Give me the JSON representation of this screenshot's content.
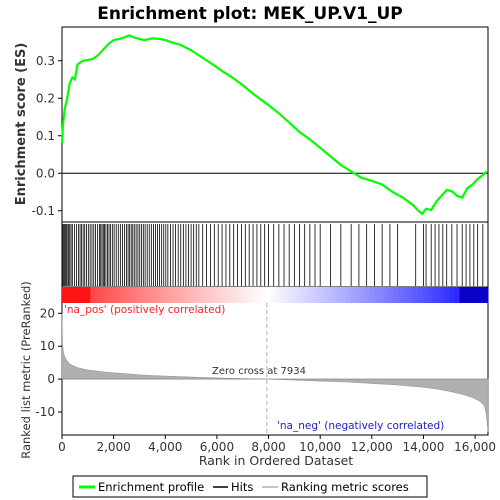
{
  "chart_data": [
    {
      "panel": "enrichment",
      "type": "line",
      "title": "Enrichment plot: MEK_UP.V1_UP",
      "ylabel": "Enrichment score (ES)",
      "xlim": [
        0,
        16500
      ],
      "ylim": [
        -0.13,
        0.39
      ],
      "yticks": [
        -0.1,
        0.0,
        0.1,
        0.2,
        0.3
      ],
      "ytick_labels": [
        "-0.1",
        "0.0",
        "0.1",
        "0.2",
        "0.3"
      ],
      "grid": false,
      "series": [
        {
          "name": "Enrichment profile",
          "color": "#00ff00",
          "x": [
            0,
            40,
            100,
            200,
            300,
            400,
            500,
            600,
            700,
            800,
            1000,
            1200,
            1400,
            1600,
            1800,
            2000,
            2200,
            2400,
            2600,
            2800,
            3000,
            3200,
            3500,
            3800,
            4000,
            4300,
            4600,
            5000,
            5400,
            5800,
            6200,
            6600,
            7000,
            7400,
            7934,
            8400,
            8800,
            9200,
            9600,
            10000,
            10400,
            10800,
            11200,
            11600,
            12000,
            12400,
            12800,
            13200,
            13600,
            13800,
            13950,
            14100,
            14300,
            14500,
            14700,
            14900,
            15100,
            15300,
            15500,
            15700,
            15900,
            16100,
            16300,
            16450
          ],
          "y": [
            0.08,
            0.13,
            0.17,
            0.2,
            0.24,
            0.255,
            0.25,
            0.29,
            0.295,
            0.3,
            0.302,
            0.305,
            0.315,
            0.33,
            0.345,
            0.355,
            0.358,
            0.362,
            0.368,
            0.362,
            0.358,
            0.355,
            0.36,
            0.358,
            0.355,
            0.348,
            0.342,
            0.328,
            0.31,
            0.292,
            0.273,
            0.255,
            0.235,
            0.212,
            0.185,
            0.16,
            0.135,
            0.11,
            0.09,
            0.068,
            0.045,
            0.022,
            0.005,
            -0.012,
            -0.02,
            -0.03,
            -0.05,
            -0.065,
            -0.085,
            -0.1,
            -0.108,
            -0.095,
            -0.098,
            -0.075,
            -0.06,
            -0.045,
            -0.048,
            -0.06,
            -0.065,
            -0.04,
            -0.03,
            -0.015,
            -0.005,
            0.005
          ]
        }
      ]
    },
    {
      "panel": "hits",
      "type": "scatter",
      "series": [
        {
          "name": "Hits",
          "color": "#000000",
          "x": [
            10,
            40,
            80,
            120,
            160,
            200,
            250,
            300,
            350,
            400,
            480,
            560,
            640,
            700,
            760,
            820,
            880,
            950,
            1020,
            1090,
            1160,
            1230,
            1300,
            1380,
            1450,
            1500,
            1550,
            1600,
            1650,
            1700,
            1760,
            1820,
            1880,
            1950,
            2020,
            2100,
            2180,
            2260,
            2340,
            2420,
            2500,
            2560,
            2620,
            2680,
            2740,
            2800,
            2870,
            2940,
            3010,
            3080,
            3150,
            3220,
            3300,
            3380,
            3460,
            3540,
            3620,
            3700,
            3780,
            3860,
            3940,
            4020,
            4100,
            4200,
            4300,
            4400,
            4500,
            4600,
            4700,
            4800,
            4900,
            5000,
            5100,
            5200,
            5300,
            5450,
            5600,
            5750,
            5900,
            6050,
            6200,
            6350,
            6500,
            6650,
            6800,
            6950,
            7100,
            7250,
            7400,
            7550,
            7700,
            7850,
            8000,
            8200,
            8400,
            8600,
            8800,
            9000,
            9200,
            9400,
            9600,
            9800,
            10000,
            10400,
            10800,
            11200,
            11500,
            11800,
            12100,
            12400,
            12700,
            13000,
            13700,
            14000,
            14100,
            14300,
            14450,
            14600,
            14750,
            14900,
            15100,
            15300,
            15500,
            15650,
            15800,
            15950,
            16100,
            16300
          ]
        }
      ]
    },
    {
      "panel": "ranked-metric",
      "type": "area",
      "ylabel": "Ranked list metric (PreRanked)",
      "xlabel": "Rank in Ordered Dataset",
      "xlim": [
        0,
        16500
      ],
      "ylim": [
        -17,
        28
      ],
      "yticks": [
        20,
        10,
        0,
        -10
      ],
      "ytick_labels": [
        "20",
        "10",
        "0",
        "-10"
      ],
      "xticks": [
        0,
        2000,
        4000,
        6000,
        8000,
        10000,
        12000,
        14000,
        16000
      ],
      "xtick_labels": [
        "0",
        "2,000",
        "4,000",
        "6,000",
        "8,000",
        "10,000",
        "12,000",
        "14,000",
        "16,000"
      ],
      "zero_cross_label": "Zero cross at 7934",
      "zero_cross_x": 7934,
      "pos_label": "'na_pos' (positively correlated)",
      "neg_label": "'na_neg' (negatively correlated)",
      "series": [
        {
          "name": "Ranking metric scores",
          "color": "#b0b0b0",
          "x": [
            0,
            20,
            60,
            120,
            200,
            300,
            450,
            600,
            800,
            1000,
            1300,
            1600,
            2000,
            2500,
            3000,
            3500,
            4000,
            5000,
            6000,
            7000,
            7934,
            9000,
            10000,
            11000,
            12000,
            13000,
            14000,
            14500,
            15000,
            15500,
            15900,
            16200,
            16350,
            16420,
            16460,
            16500
          ],
          "y": [
            20,
            11,
            8,
            6.5,
            5.5,
            4.6,
            4,
            3.5,
            3.1,
            2.8,
            2.5,
            2.2,
            1.9,
            1.6,
            1.3,
            1.1,
            0.9,
            0.6,
            0.35,
            0.15,
            0,
            -0.3,
            -0.6,
            -0.9,
            -1.3,
            -1.8,
            -2.5,
            -3,
            -3.7,
            -4.6,
            -5.6,
            -6.8,
            -8,
            -10,
            -13,
            -16
          ]
        }
      ]
    }
  ],
  "legend": {
    "items": [
      {
        "label": "Enrichment profile",
        "color": "#00ff00"
      },
      {
        "label": "Hits",
        "color": "#000000"
      },
      {
        "label": "Ranking metric scores",
        "color": "#b0b0b0"
      }
    ]
  },
  "colors": {
    "pos_text": "#ff2020",
    "neg_text": "#2020cc",
    "heat_red": "#ff0000",
    "heat_blue": "#0000ff"
  }
}
